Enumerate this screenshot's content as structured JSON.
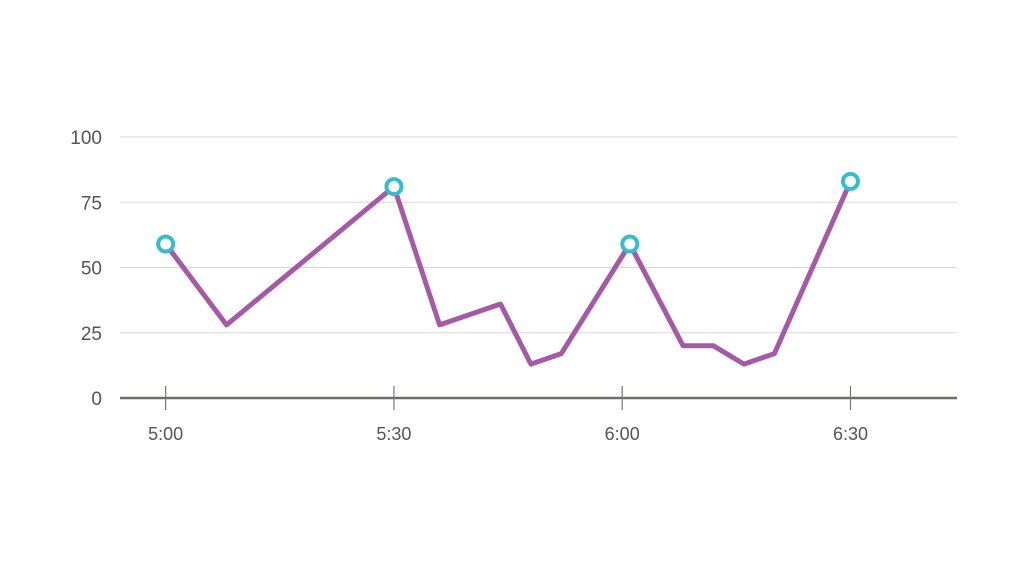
{
  "chart_data": {
    "type": "line",
    "title": "",
    "xlabel": "",
    "ylabel": "",
    "x_unit": "minutes",
    "xlim": [
      "4:54",
      "6:44"
    ],
    "ylim": [
      0,
      100
    ],
    "y_ticks": [
      0,
      25,
      50,
      75,
      100
    ],
    "x_ticks": [
      {
        "label": "5:00",
        "value": "5:00"
      },
      {
        "label": "5:30",
        "value": "5:30"
      },
      {
        "label": "6:00",
        "value": "6:00"
      },
      {
        "label": "6:30",
        "value": "6:30"
      }
    ],
    "grid": true,
    "legend": "none",
    "colors": {
      "line": "#a55aa8",
      "marker": "#35bccf",
      "grid": "#d7d7d7",
      "axis": "#6f6f6a"
    },
    "series": [
      {
        "x": [
          "5:00",
          "5:08",
          "5:30",
          "5:36",
          "5:44",
          "5:48",
          "5:52",
          "6:01",
          "6:08",
          "6:12",
          "6:16",
          "6:20",
          "6:30"
        ],
        "y": [
          59,
          28,
          81,
          28,
          36,
          13,
          17,
          59,
          20,
          20,
          13,
          17,
          83
        ],
        "markers": [
          "5:00",
          "5:30",
          "6:01",
          "6:30"
        ]
      }
    ]
  }
}
